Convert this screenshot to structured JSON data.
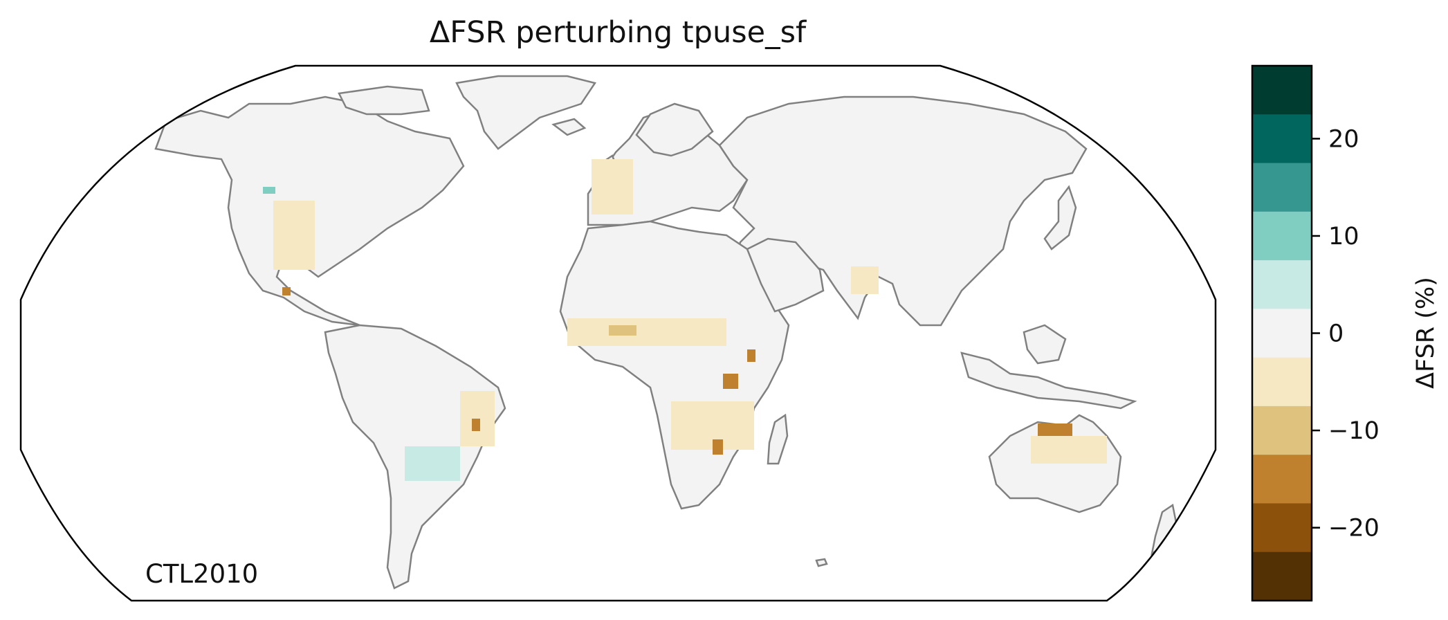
{
  "title": "ΔFSR perturbing tpuse_sf",
  "scenario_label": "CTL2010",
  "colorbar": {
    "label": "ΔFSR (%)",
    "ticks": [
      {
        "value": 20,
        "label": "20"
      },
      {
        "value": 10,
        "label": "10"
      },
      {
        "value": 0,
        "label": "0"
      },
      {
        "value": -10,
        "label": "−10"
      },
      {
        "value": -20,
        "label": "−20"
      }
    ],
    "range": [
      -27.5,
      27.5
    ],
    "bins": [
      {
        "from": 22.5,
        "to": 27.5,
        "color": "#003c30"
      },
      {
        "from": 17.5,
        "to": 22.5,
        "color": "#01665e"
      },
      {
        "from": 12.5,
        "to": 17.5,
        "color": "#35978f"
      },
      {
        "from": 7.5,
        "to": 12.5,
        "color": "#80cdc1"
      },
      {
        "from": 2.5,
        "to": 7.5,
        "color": "#c7eae5"
      },
      {
        "from": -2.5,
        "to": 2.5,
        "color": "#f3f3f3"
      },
      {
        "from": -7.5,
        "to": -2.5,
        "color": "#f6e8c3"
      },
      {
        "from": -12.5,
        "to": -7.5,
        "color": "#dfc27d"
      },
      {
        "from": -17.5,
        "to": -12.5,
        "color": "#bf812d"
      },
      {
        "from": -22.5,
        "to": -17.5,
        "color": "#8c510a"
      },
      {
        "from": -27.5,
        "to": -22.5,
        "color": "#543005"
      }
    ]
  },
  "map": {
    "projection": "Robinson",
    "land_color": "#f3f3f3",
    "coastline_color": "#808080",
    "border_color": "#c8c8c8",
    "cells": [
      {
        "region": "Southwest US",
        "delta_pct": -5
      },
      {
        "region": "Mexico",
        "delta_pct": -15
      },
      {
        "region": "Pacific Northwest",
        "delta_pct": 10
      },
      {
        "region": "Western Europe",
        "delta_pct": -5
      },
      {
        "region": "Sahel",
        "delta_pct": -8
      },
      {
        "region": "East Africa",
        "delta_pct": -15
      },
      {
        "region": "Southern Africa",
        "delta_pct": -5
      },
      {
        "region": "Mozambique",
        "delta_pct": -15
      },
      {
        "region": "Eastern Brazil",
        "delta_pct": -5
      },
      {
        "region": "Eastern Brazil interior",
        "delta_pct": -15
      },
      {
        "region": "Paraguay / Argentina",
        "delta_pct": 5
      },
      {
        "region": "India",
        "delta_pct": -5
      },
      {
        "region": "Northern Australia",
        "delta_pct": -15
      },
      {
        "region": "Australia interior",
        "delta_pct": -5
      }
    ]
  }
}
